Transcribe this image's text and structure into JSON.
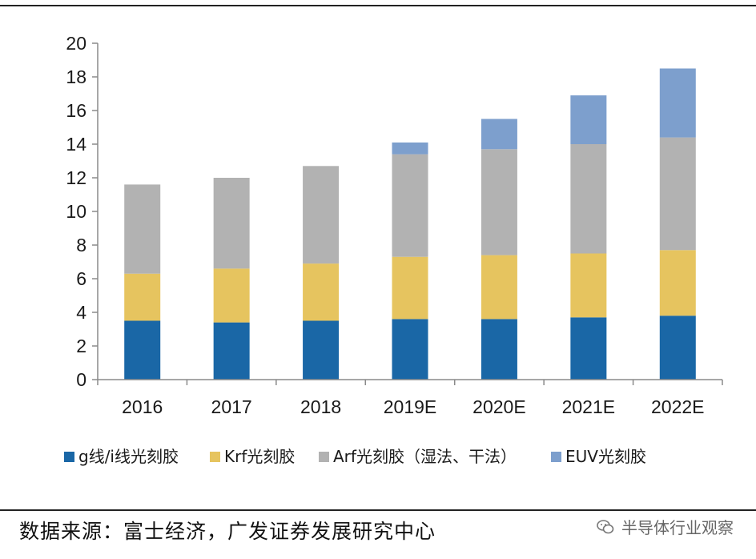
{
  "chart_data": {
    "type": "bar",
    "stacked": true,
    "categories": [
      "2016",
      "2017",
      "2018",
      "2019E",
      "2020E",
      "2021E",
      "2022E"
    ],
    "series": [
      {
        "name": "g线/i线光刻胶",
        "color": "#1a67a6",
        "values": [
          3.5,
          3.4,
          3.5,
          3.6,
          3.6,
          3.7,
          3.8
        ]
      },
      {
        "name": "Krf光刻胶",
        "color": "#e6c45f",
        "values": [
          2.8,
          3.2,
          3.4,
          3.7,
          3.8,
          3.8,
          3.9
        ]
      },
      {
        "name": "Arf光刻胶（湿法、干法）",
        "color": "#b2b2b2",
        "values": [
          5.3,
          5.4,
          5.8,
          6.1,
          6.3,
          6.5,
          6.7
        ]
      },
      {
        "name": "EUV光刻胶",
        "color": "#7d9fcd",
        "values": [
          0,
          0,
          0,
          0.7,
          1.8,
          2.9,
          4.1
        ]
      }
    ],
    "ylim": [
      0,
      20
    ],
    "yticks": [
      "0",
      "2",
      "4",
      "6",
      "8",
      "10",
      "12",
      "14",
      "16",
      "18",
      "20"
    ],
    "grid": false,
    "legend_position": "bottom"
  },
  "footer": {
    "source": "数据来源：富士经济，广发证券发展研究中心",
    "watermark": "半导体行业观察"
  }
}
